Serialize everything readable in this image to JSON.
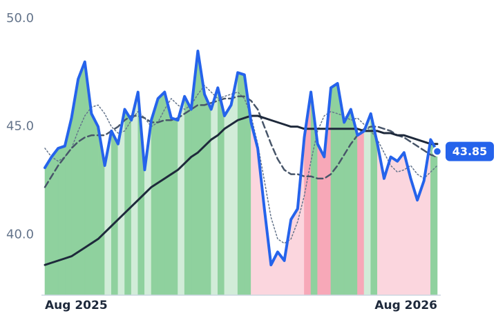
{
  "chart_data": {
    "type": "line",
    "categories": [
      "Aug 2025",
      null,
      null,
      null,
      null,
      null,
      null,
      null,
      null,
      null,
      null,
      null,
      null,
      null,
      null,
      null,
      null,
      null,
      null,
      null,
      null,
      null,
      null,
      null,
      null,
      null,
      null,
      null,
      null,
      null,
      null,
      null,
      null,
      null,
      null,
      null,
      null,
      null,
      null,
      null,
      null,
      null,
      null,
      null,
      null,
      null,
      null,
      null,
      null,
      null,
      null,
      null,
      null,
      null,
      null,
      null,
      null,
      null,
      null,
      "Aug 2026"
    ],
    "series": [
      {
        "color": "#2563eb",
        "dash": "solid",
        "width": 4,
        "values": [
          43.1,
          43.6,
          44.0,
          44.1,
          45.4,
          47.2,
          48.0,
          45.6,
          45.0,
          43.2,
          44.8,
          44.2,
          45.8,
          45.3,
          46.6,
          43.0,
          45.3,
          46.3,
          46.6,
          45.4,
          45.3,
          46.4,
          45.8,
          48.5,
          46.5,
          45.8,
          46.8,
          45.5,
          46.0,
          47.5,
          47.4,
          45.2,
          44.0,
          41.2,
          38.6,
          39.2,
          38.8,
          40.7,
          41.2,
          44.5,
          46.6,
          44.2,
          43.6,
          46.8,
          47.0,
          45.2,
          45.8,
          44.6,
          44.8,
          45.6,
          44.2,
          42.6,
          43.6,
          43.4,
          43.8,
          42.6,
          41.6,
          42.5,
          44.4,
          43.85
        ]
      },
      {
        "color": "#1e293b",
        "dash": "solid",
        "width": 3,
        "values": [
          38.6,
          38.7,
          38.8,
          38.9,
          39.0,
          39.2,
          39.4,
          39.6,
          39.8,
          40.1,
          40.4,
          40.7,
          41.0,
          41.3,
          41.6,
          41.9,
          42.2,
          42.4,
          42.6,
          42.8,
          43.0,
          43.3,
          43.6,
          43.8,
          44.1,
          44.4,
          44.6,
          44.9,
          45.1,
          45.3,
          45.4,
          45.5,
          45.5,
          45.4,
          45.3,
          45.2,
          45.1,
          45.0,
          45.0,
          44.9,
          44.9,
          44.9,
          44.9,
          44.9,
          44.9,
          44.9,
          44.9,
          44.9,
          44.8,
          44.8,
          44.8,
          44.7,
          44.7,
          44.6,
          44.6,
          44.5,
          44.4,
          44.3,
          44.2,
          44.2
        ]
      },
      {
        "color": "#475569",
        "dash": "dashed",
        "width": 2.5,
        "values": [
          42.2,
          42.7,
          43.2,
          43.6,
          44.0,
          44.3,
          44.5,
          44.6,
          44.6,
          44.6,
          44.8,
          45.0,
          45.3,
          45.5,
          45.5,
          45.4,
          45.2,
          45.2,
          45.3,
          45.3,
          45.4,
          45.6,
          45.8,
          46.0,
          46.0,
          46.1,
          46.2,
          46.3,
          46.3,
          46.4,
          46.4,
          46.2,
          45.8,
          45.0,
          44.2,
          43.5,
          43.0,
          42.8,
          42.8,
          42.7,
          42.7,
          42.6,
          42.6,
          42.8,
          43.2,
          43.7,
          44.2,
          44.6,
          44.9,
          45.0,
          45.0,
          44.9,
          44.8,
          44.6,
          44.5,
          44.3,
          44.1,
          43.9,
          43.7,
          43.6
        ]
      },
      {
        "color": "#64748b",
        "dash": "dotted",
        "width": 1.5,
        "values": [
          44.0,
          43.6,
          43.4,
          43.6,
          44.0,
          44.8,
          45.5,
          45.9,
          46.0,
          45.6,
          45.0,
          44.7,
          44.8,
          45.3,
          45.7,
          45.4,
          45.0,
          45.2,
          45.8,
          46.3,
          46.0,
          45.8,
          46.0,
          46.5,
          46.9,
          46.6,
          46.3,
          46.4,
          46.5,
          46.6,
          46.3,
          45.5,
          44.2,
          42.5,
          40.8,
          39.8,
          39.6,
          39.8,
          40.6,
          41.8,
          43.4,
          44.8,
          45.5,
          45.7,
          45.6,
          45.5,
          45.3,
          45.4,
          45.1,
          44.8,
          44.4,
          43.8,
          43.2,
          42.9,
          43.0,
          43.2,
          42.8,
          42.6,
          42.9,
          43.2
        ]
      }
    ],
    "area_colors": {
      "up": "#8fd19e",
      "up_light": "#d1ecd8",
      "down": "#f7a8b8",
      "down_light": "#fbd6de"
    },
    "ylim": [
      37.2,
      50.0
    ],
    "yticks": [
      {
        "value": 50,
        "label": "50.0"
      },
      {
        "value": 45,
        "label": "45.0"
      },
      {
        "value": 40,
        "label": "40.0"
      }
    ],
    "grid": false
  }
}
